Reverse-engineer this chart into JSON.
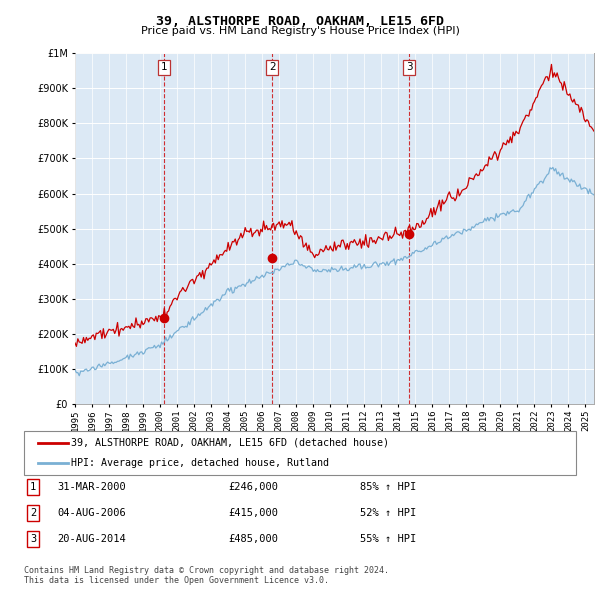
{
  "title": "39, ALSTHORPE ROAD, OAKHAM, LE15 6FD",
  "subtitle": "Price paid vs. HM Land Registry's House Price Index (HPI)",
  "legend_line1": "39, ALSTHORPE ROAD, OAKHAM, LE15 6FD (detached house)",
  "legend_line2": "HPI: Average price, detached house, Rutland",
  "footnote1": "Contains HM Land Registry data © Crown copyright and database right 2024.",
  "footnote2": "This data is licensed under the Open Government Licence v3.0.",
  "transactions": [
    {
      "num": 1,
      "date": "31-MAR-2000",
      "price": "£246,000",
      "change": "85% ↑ HPI"
    },
    {
      "num": 2,
      "date": "04-AUG-2006",
      "price": "£415,000",
      "change": "52% ↑ HPI"
    },
    {
      "num": 3,
      "date": "20-AUG-2014",
      "price": "£485,000",
      "change": "55% ↑ HPI"
    }
  ],
  "sale_dates_decimal": [
    2000.25,
    2006.59,
    2014.64
  ],
  "sale_prices": [
    246000,
    415000,
    485000
  ],
  "hpi_color": "#7ab0d4",
  "price_color": "#cc0000",
  "vline_color": "#cc0000",
  "chart_bg": "#dce9f5",
  "background_color": "#ffffff",
  "grid_color": "#ffffff",
  "ylim": [
    0,
    1000000
  ],
  "xlim_start": 1995.0,
  "xlim_end": 2025.5,
  "title_fontsize": 10,
  "subtitle_fontsize": 8
}
